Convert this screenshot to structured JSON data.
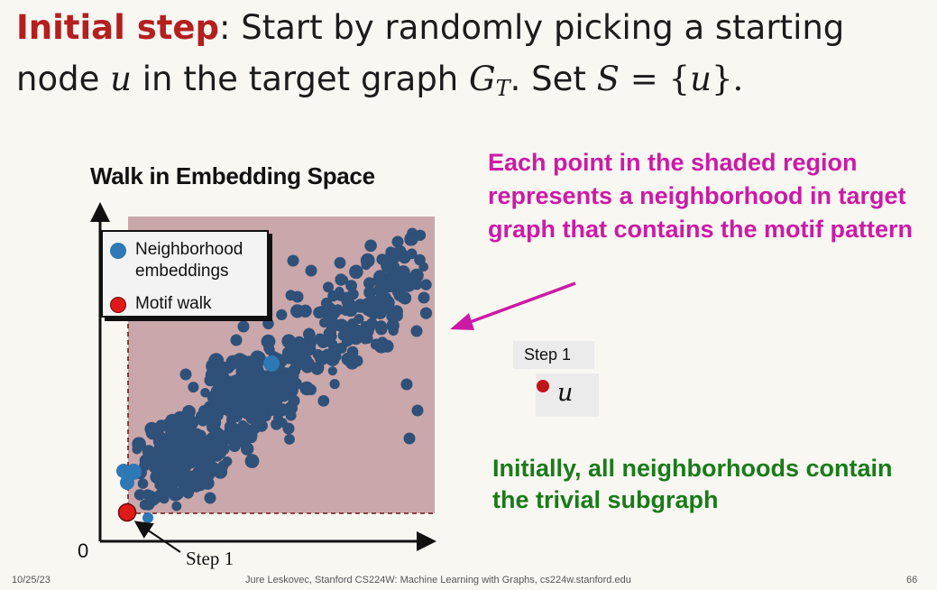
{
  "title": {
    "highlight": "Initial step",
    "part1": ": Start by randomly picking a starting node ",
    "var_u": "u",
    "part2": " in the target graph ",
    "var_g": "G",
    "sub_t": "T",
    "part3": ". Set ",
    "var_s": "S",
    "part4": " = {",
    "var_u2": "u",
    "part5": "}."
  },
  "plot": {
    "title": "Walk in Embedding Space",
    "origin_label": "0",
    "region_color": "#c9a7aa",
    "point_color": "#2f5078",
    "legend": {
      "items": [
        {
          "label": "Neighborhood embeddings",
          "color": "#2e78b5"
        },
        {
          "label": "Motif walk",
          "color": "#e01a1a"
        }
      ]
    },
    "step_label": "Step 1"
  },
  "callout": "Each point in the shaded region represents a neighborhood in target graph that contains the motif pattern",
  "walk_state": {
    "step_label": "Step 1",
    "node_label": "u"
  },
  "green_note": "Initially, all neighborhoods contain the trivial subgraph",
  "footer": {
    "date": "10/25/23",
    "credit": "Jure Leskovec, Stanford CS224W: Machine Learning with Graphs, cs224w.stanford.edu",
    "page": "66"
  }
}
